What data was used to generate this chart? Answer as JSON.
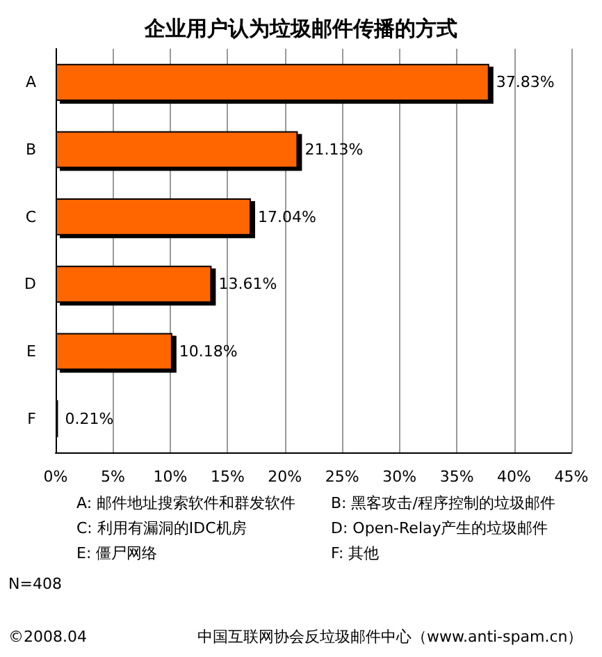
{
  "chart_data": {
    "type": "bar",
    "orientation": "horizontal",
    "title": "企业用户认为垃圾邮件传播的方式",
    "categories": [
      "A",
      "B",
      "C",
      "D",
      "E",
      "F"
    ],
    "values": [
      37.83,
      21.13,
      17.04,
      13.61,
      10.18,
      0.21
    ],
    "value_labels": [
      "37.83%",
      "21.13%",
      "17.04%",
      "13.61%",
      "10.18%",
      "0.21%"
    ],
    "color": "#ff6600",
    "xlim": [
      0,
      45
    ],
    "xticks": [
      {
        "value": 0,
        "label": "0%"
      },
      {
        "value": 5,
        "label": "5%"
      },
      {
        "value": 10,
        "label": "10%"
      },
      {
        "value": 15,
        "label": "15%"
      },
      {
        "value": 20,
        "label": "20%"
      },
      {
        "value": 25,
        "label": "25%"
      },
      {
        "value": 30,
        "label": "30%"
      },
      {
        "value": 35,
        "label": "35%"
      },
      {
        "value": 40,
        "label": "40%"
      },
      {
        "value": 45,
        "label": "45%"
      }
    ],
    "grid": "x",
    "annotations": [
      "A: 邮件地址搜索软件和群发软件",
      "B: 黑客攻击/程序控制的垃圾邮件",
      "C: 利用有漏洞的IDC机房",
      "D: Open-Relay产生的垃圾邮件",
      "E: 僵尸网络",
      "F: 其他",
      "N=408",
      "©2008.04",
      "中国互联网协会反垃圾邮件中心（www.anti-spam.cn）"
    ]
  }
}
